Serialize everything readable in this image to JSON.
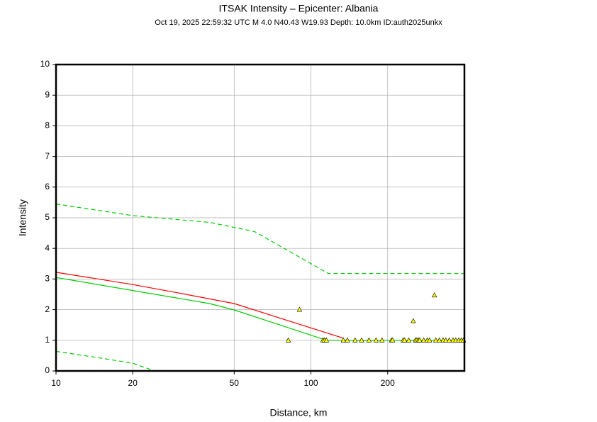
{
  "chart_data": {
    "type": "line",
    "title": "ITSAK Intensity –  Epicenter: Albania",
    "subtitle": "Oct 19, 2025 22:59:32 UTC   M 4.0   N40.43 W19.93   Depth: 10.0km   ID:auth2025unkx",
    "x_label": "Distance, km",
    "y_label": "Intensity",
    "xscale": "log",
    "xlim": [
      10,
      400
    ],
    "xticks": [
      10,
      20,
      50,
      100,
      200
    ],
    "ylim": [
      0,
      10
    ],
    "yticks": [
      0,
      1,
      2,
      3,
      4,
      5,
      6,
      7,
      8,
      9,
      10
    ],
    "grid": true,
    "series": [
      {
        "color": "#ff0000",
        "dashed": false,
        "x": [
          10,
          20,
          30,
          50,
          134
        ],
        "values": [
          3.22,
          2.82,
          2.55,
          2.2,
          1.07
        ]
      },
      {
        "color": "#00cc00",
        "dashed": false,
        "x": [
          10,
          40,
          50,
          115,
          400
        ],
        "values": [
          3.05,
          2.2,
          1.99,
          1.0,
          1.0
        ]
      },
      {
        "color": "#00cc00",
        "dashed": true,
        "x": [
          10,
          20,
          40,
          60,
          117,
          400
        ],
        "values": [
          5.45,
          5.07,
          4.85,
          4.55,
          3.18,
          3.18
        ]
      },
      {
        "color": "#00cc00",
        "dashed": true,
        "x": [
          10,
          15,
          20,
          24.4
        ],
        "values": [
          0.64,
          0.42,
          0.25,
          0
        ]
      },
      {
        "color": "#ffff00",
        "marker": "triangle",
        "x": [
          81.5,
          90.2,
          111.5,
          113,
          115,
          134,
          139,
          149,
          158,
          169,
          180,
          190,
          207,
          209,
          230,
          233,
          242,
          252,
          257,
          260,
          264,
          267,
          277,
          286,
          292,
          305,
          309,
          319,
          330,
          338,
          349,
          361,
          370,
          380,
          389,
          397
        ],
        "values": [
          1,
          2,
          1,
          1,
          1,
          1,
          1,
          1,
          1,
          1,
          1,
          1,
          1,
          1,
          1,
          1,
          1,
          1.63,
          1,
          1,
          1,
          1,
          1,
          1,
          1,
          2.47,
          1,
          1,
          1,
          1,
          1,
          1,
          1,
          1,
          1,
          1
        ]
      }
    ]
  }
}
